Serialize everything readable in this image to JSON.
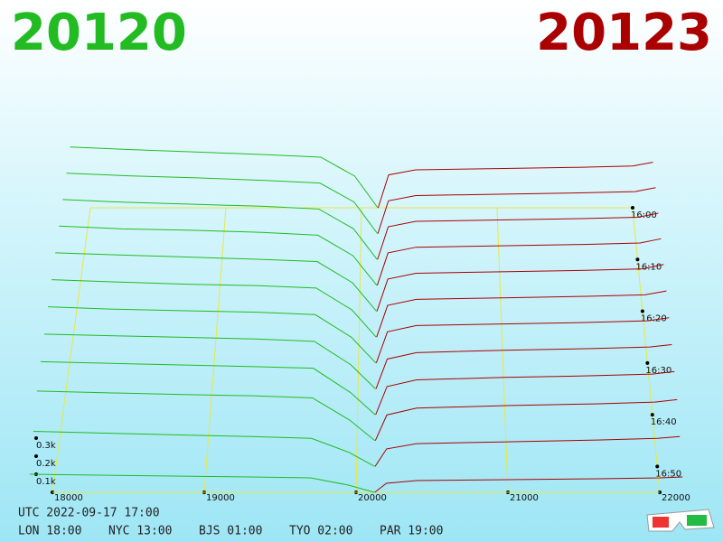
{
  "chart_data": {
    "type": "depth3d",
    "bid_label": "20120",
    "ask_label": "20123",
    "bid_color": "#22bb22",
    "ask_color": "#aa0000",
    "grid_color": "#e8e840",
    "xlim": [
      18000,
      22000
    ],
    "xticks": [
      18000,
      19000,
      20000,
      21000,
      22000
    ],
    "yticks": [
      {
        "value": 100,
        "label": "0.1k"
      },
      {
        "value": 200,
        "label": "0.2k"
      },
      {
        "value": 300,
        "label": "0.3k"
      }
    ],
    "zlim": [
      0,
      55
    ],
    "zticks": [
      {
        "value": 0,
        "label": "16:00"
      },
      {
        "value": 10,
        "label": "16:10"
      },
      {
        "value": 20,
        "label": "16:20"
      },
      {
        "value": 30,
        "label": "16:30"
      },
      {
        "value": 40,
        "label": "16:40"
      },
      {
        "value": 50,
        "label": "16:50"
      }
    ],
    "bid_prices": [
      17850,
      18300,
      18800,
      19300,
      19700,
      19950,
      20120
    ],
    "ask_prices": [
      20123,
      20200,
      20400,
      21000,
      21600,
      22000,
      22150
    ],
    "slices": [
      {
        "t": 0,
        "bids": [
          480,
          460,
          440,
          420,
          400,
          250,
          0
        ],
        "asks": [
          0,
          260,
          300,
          310,
          320,
          330,
          360
        ]
      },
      {
        "t": 5,
        "bids": [
          460,
          440,
          425,
          405,
          385,
          240,
          0
        ],
        "asks": [
          0,
          250,
          290,
          300,
          310,
          320,
          350
        ]
      },
      {
        "t": 10,
        "bids": [
          440,
          420,
          405,
          390,
          370,
          225,
          0
        ],
        "asks": [
          0,
          240,
          280,
          290,
          300,
          310,
          340
        ]
      },
      {
        "t": 15,
        "bids": [
          420,
          400,
          390,
          375,
          355,
          210,
          0
        ],
        "asks": [
          0,
          230,
          270,
          280,
          290,
          300,
          330
        ]
      },
      {
        "t": 20,
        "bids": [
          400,
          385,
          370,
          355,
          340,
          195,
          0
        ],
        "asks": [
          0,
          220,
          260,
          270,
          280,
          290,
          320
        ]
      },
      {
        "t": 25,
        "bids": [
          380,
          365,
          350,
          340,
          325,
          180,
          0
        ],
        "asks": [
          0,
          210,
          250,
          260,
          270,
          280,
          305
        ]
      },
      {
        "t": 30,
        "bids": [
          360,
          345,
          335,
          325,
          310,
          165,
          0
        ],
        "asks": [
          0,
          200,
          240,
          250,
          260,
          270,
          290
        ]
      },
      {
        "t": 35,
        "bids": [
          340,
          330,
          320,
          310,
          295,
          150,
          0
        ],
        "asks": [
          0,
          185,
          225,
          240,
          250,
          260,
          275
        ]
      },
      {
        "t": 40,
        "bids": [
          320,
          310,
          300,
          290,
          280,
          135,
          0
        ],
        "asks": [
          0,
          170,
          210,
          225,
          235,
          245,
          260
        ]
      },
      {
        "t": 45,
        "bids": [
          290,
          280,
          270,
          262,
          250,
          120,
          0
        ],
        "asks": [
          0,
          150,
          190,
          205,
          215,
          225,
          240
        ]
      },
      {
        "t": 50,
        "bids": [
          200,
          190,
          180,
          170,
          160,
          80,
          0
        ],
        "asks": [
          0,
          100,
          130,
          140,
          150,
          160,
          170
        ]
      },
      {
        "t": 55,
        "bids": [
          100,
          95,
          90,
          85,
          80,
          40,
          0
        ],
        "asks": [
          0,
          50,
          65,
          70,
          75,
          80,
          85
        ]
      }
    ],
    "info_line1": "UTC 2022-09-17 17:00",
    "clocks": [
      "LON 18:00",
      "NYC 13:00",
      "BJS 01:00",
      "TYO 02:00",
      "PAR 19:00"
    ]
  }
}
